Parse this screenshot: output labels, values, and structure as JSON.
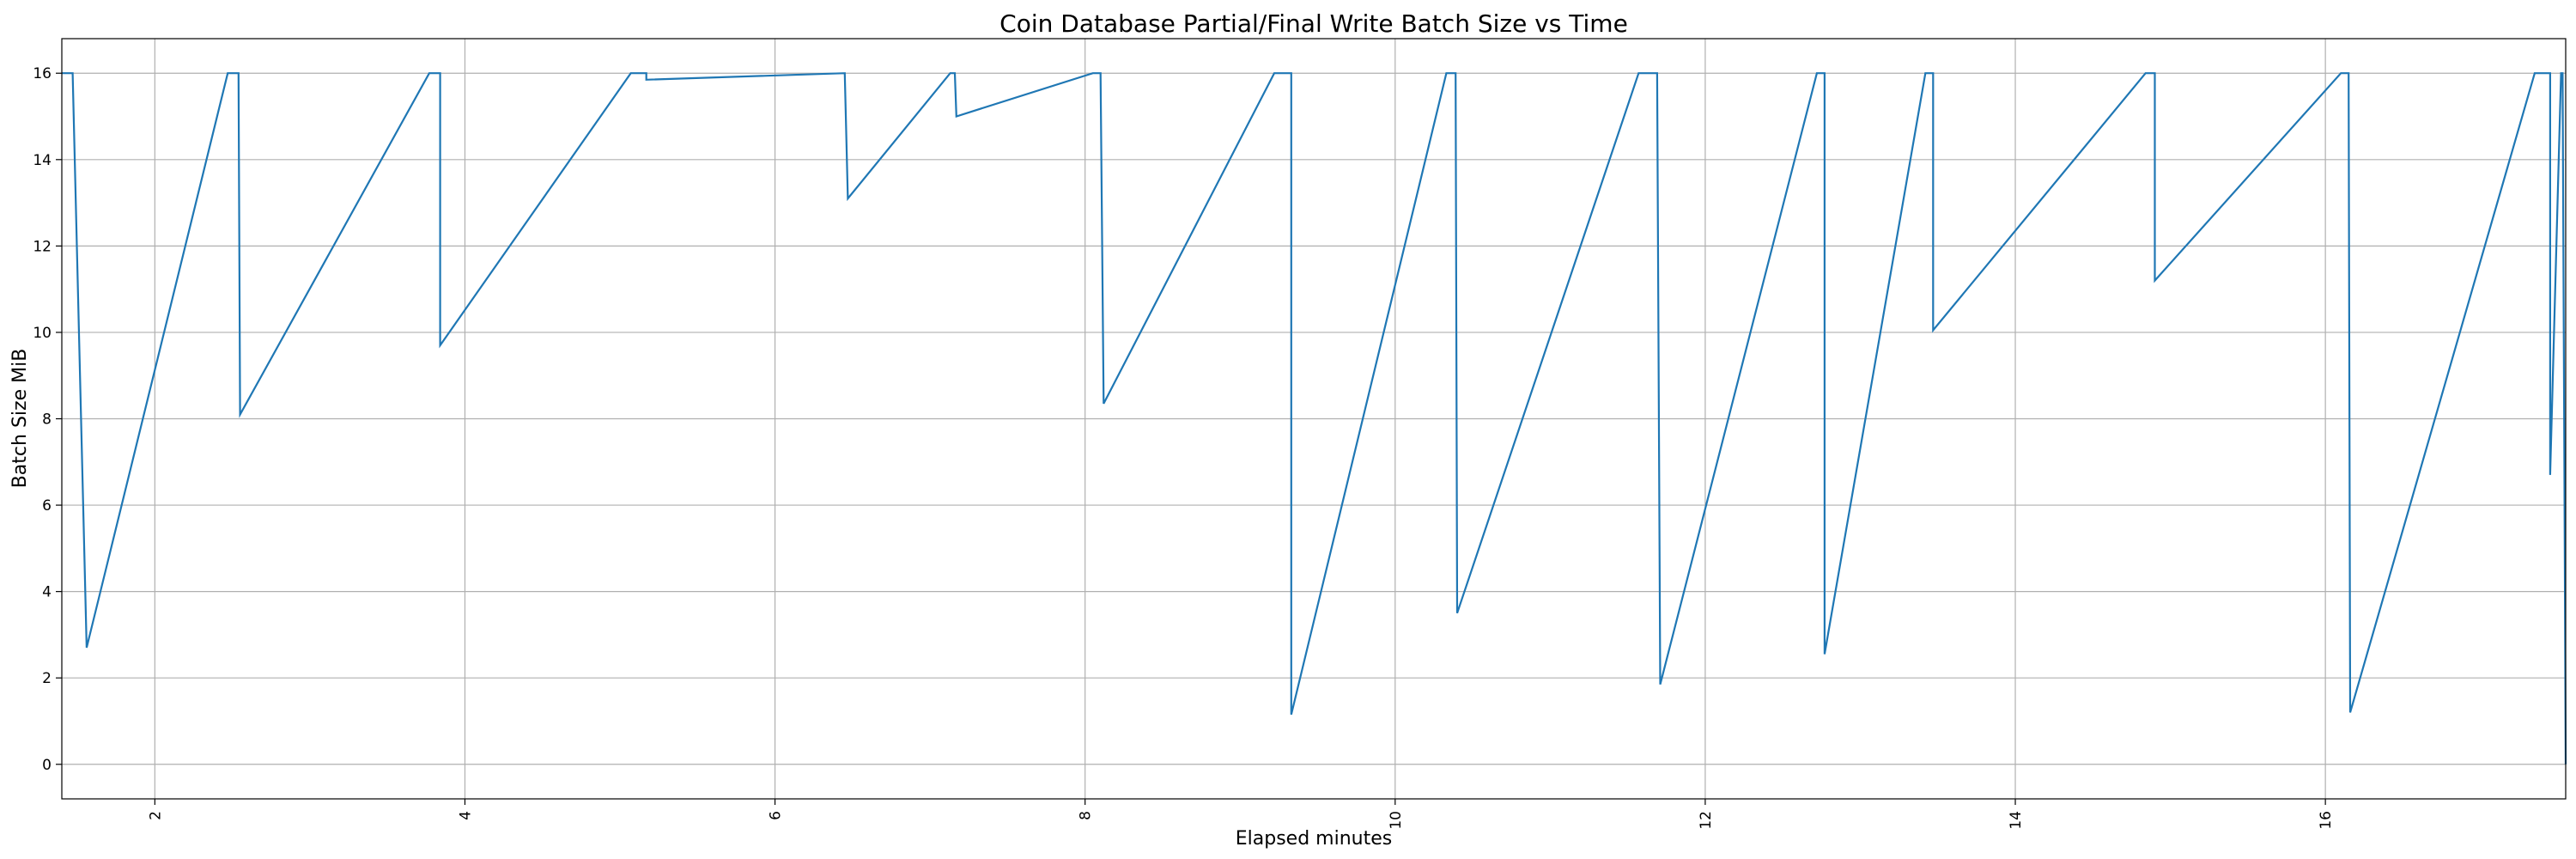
{
  "chart_data": {
    "type": "line",
    "title": "Coin Database Partial/Final Write Batch Size vs Time",
    "xlabel": "Elapsed minutes",
    "ylabel": "Batch Size MiB",
    "xlim": [
      1.4,
      17.55
    ],
    "ylim": [
      -0.8,
      16.8
    ],
    "xticks": [
      2,
      4,
      6,
      8,
      10,
      12,
      14,
      16
    ],
    "yticks": [
      0,
      2,
      4,
      6,
      8,
      10,
      12,
      14,
      16
    ],
    "grid": true,
    "line_color": "#1f77b4",
    "series": [
      {
        "x": [
          1.4,
          1.47,
          1.47,
          1.56,
          2.47,
          2.54,
          2.55,
          3.77,
          3.84,
          3.84,
          5.07,
          5.17,
          5.17,
          6.45,
          6.47,
          7.13,
          7.16,
          7.17,
          8.05,
          8.1,
          8.12,
          9.22,
          9.33,
          9.33,
          10.33,
          10.39,
          10.4,
          11.57,
          11.69,
          11.71,
          12.72,
          12.77,
          12.77,
          13.42,
          13.47,
          13.47,
          14.84,
          14.9,
          14.9,
          16.1,
          16.15,
          16.16,
          17.35,
          17.45,
          17.45,
          17.52,
          17.53,
          17.55
        ],
        "y": [
          16,
          16,
          16,
          2.7,
          16,
          16,
          8.1,
          16,
          16,
          9.7,
          16,
          16,
          15.85,
          16,
          13.1,
          16,
          16,
          15.0,
          16,
          16,
          8.35,
          16,
          16,
          1.15,
          16,
          16,
          3.5,
          16,
          16,
          1.85,
          16,
          16,
          2.55,
          16,
          16,
          10.05,
          16,
          16,
          11.2,
          16,
          16,
          1.2,
          16,
          16,
          6.7,
          16,
          16,
          0
        ]
      }
    ]
  }
}
